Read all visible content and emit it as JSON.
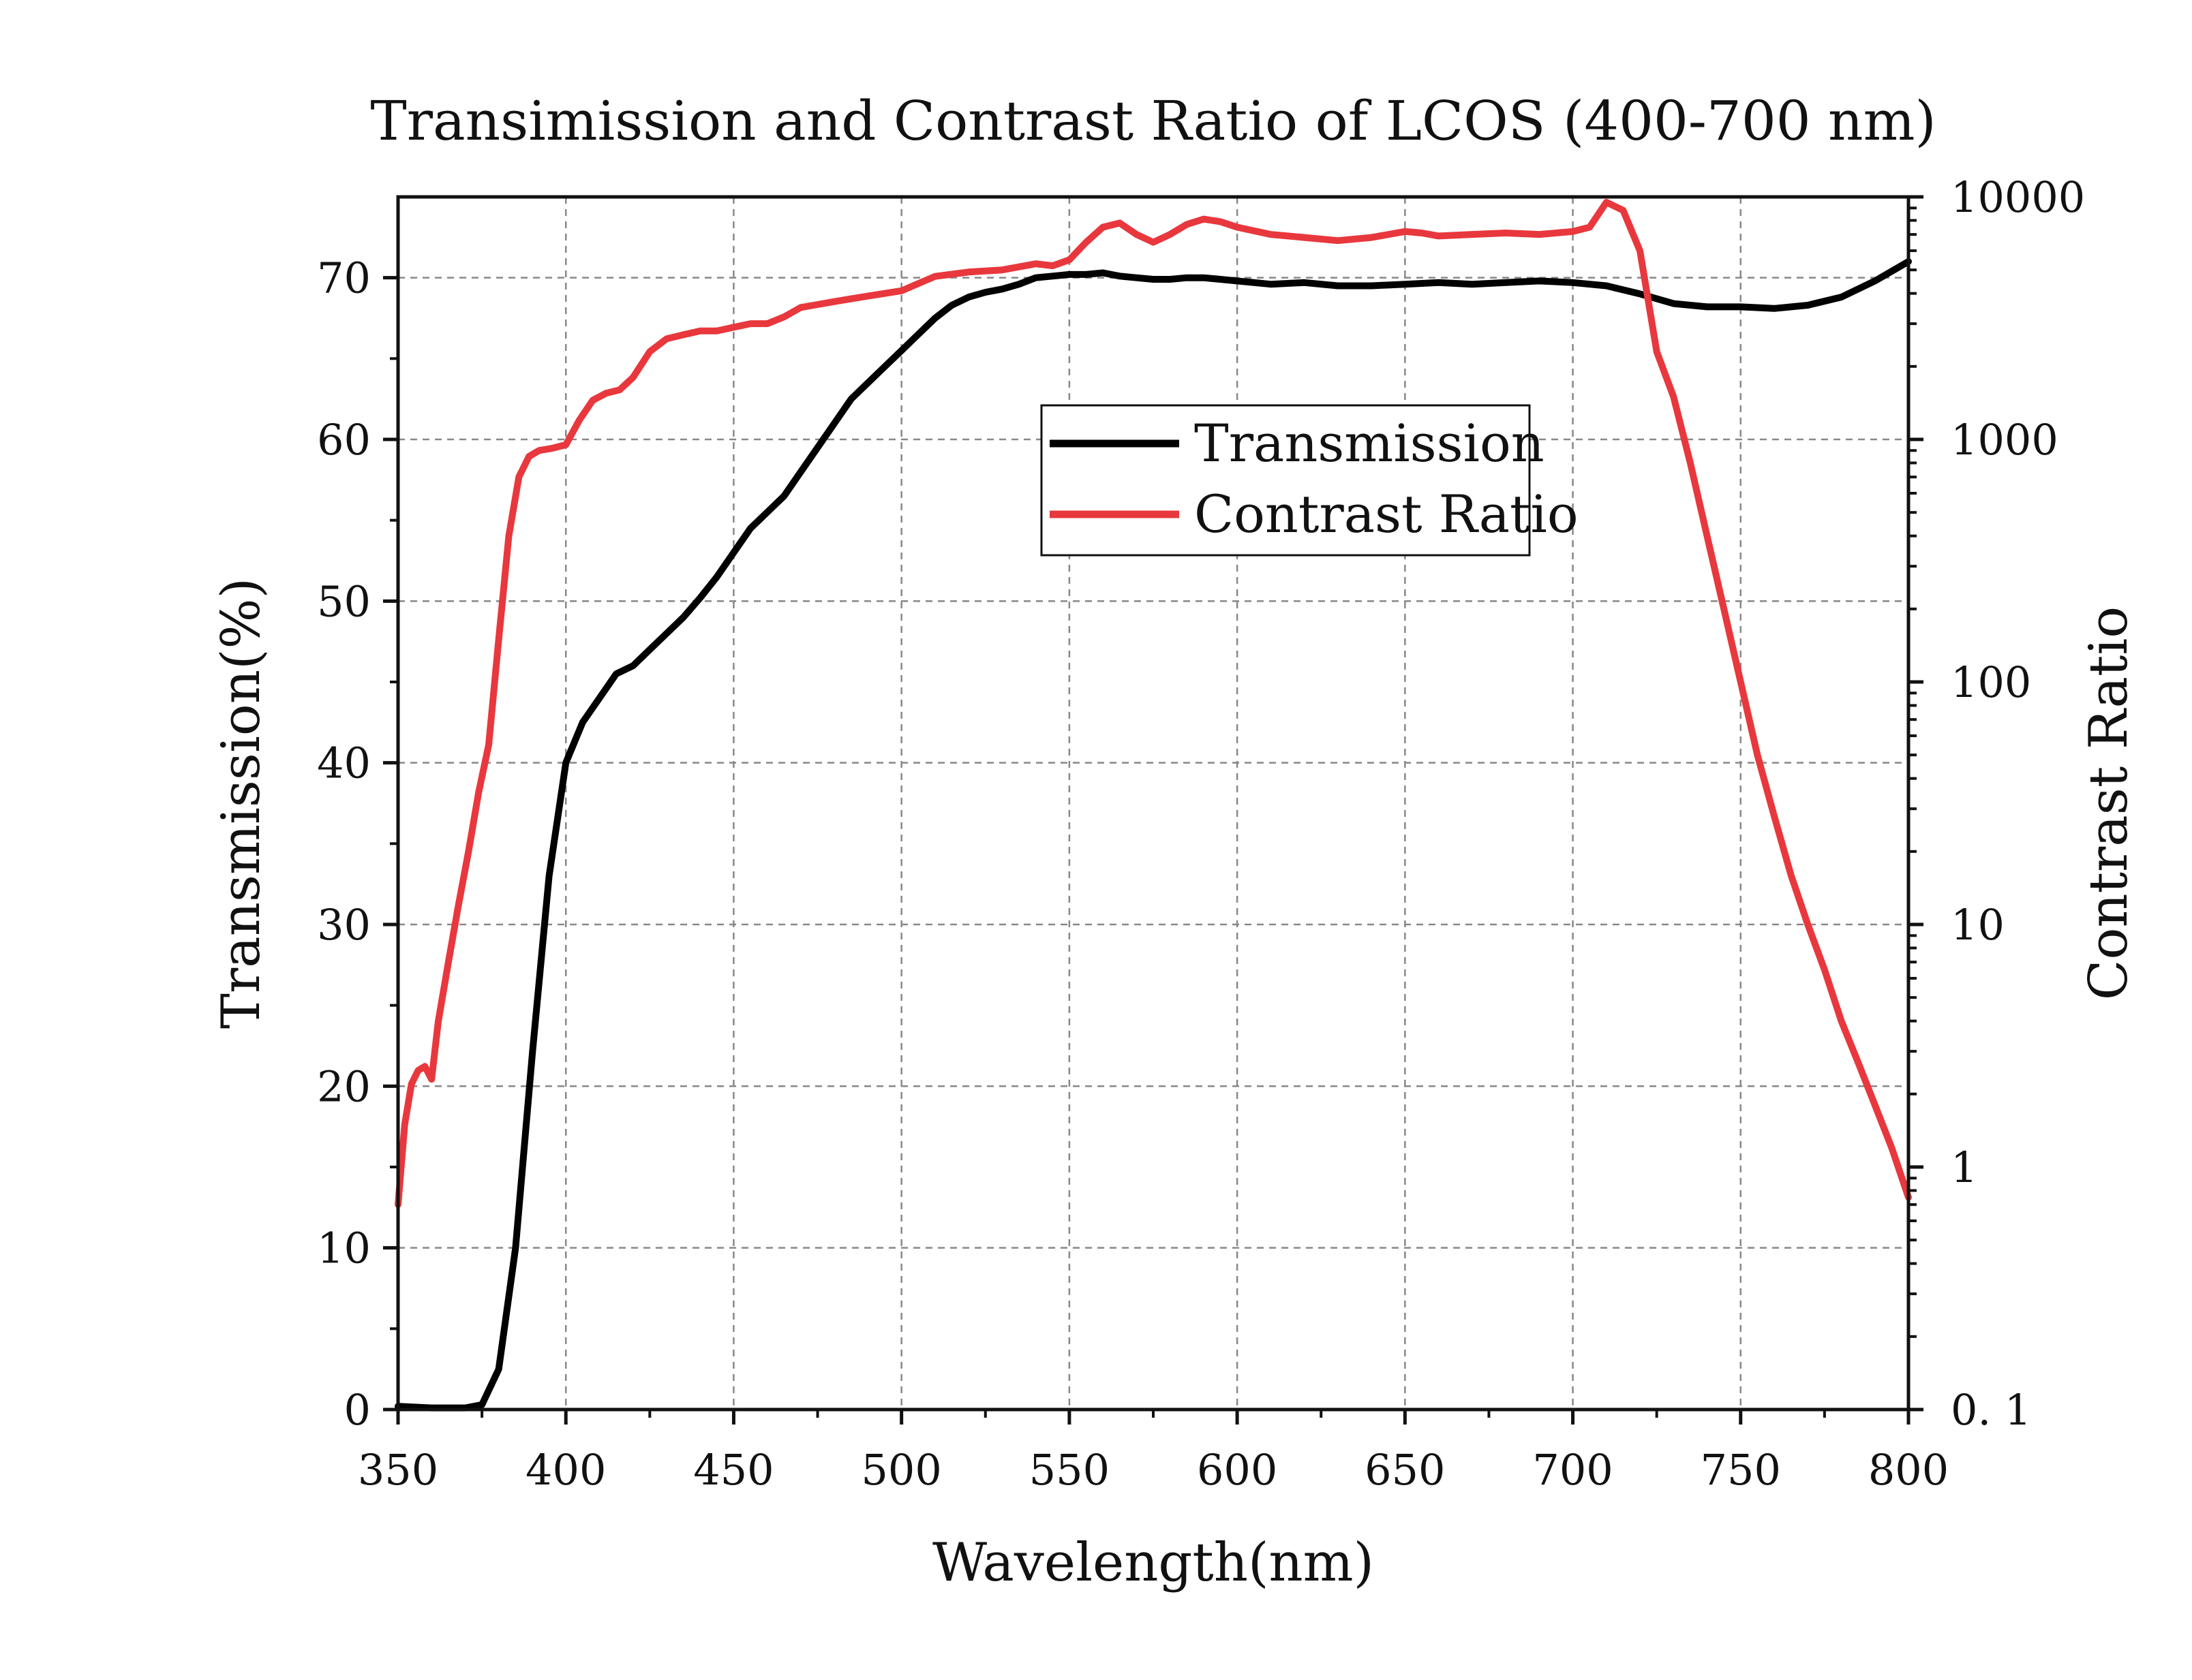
{
  "chart_data": {
    "type": "line",
    "title": "Transimission and Contrast Ratio of LCOS (400-700 nm)",
    "xlabel": "Wavelength(nm)",
    "ylabel": "Transmission(%)",
    "y2label": "Contrast Ratio",
    "xlim": [
      350,
      800
    ],
    "ylim": [
      0,
      75
    ],
    "y2lim": [
      0.1,
      10000
    ],
    "y2scale": "log",
    "grid": true,
    "legend_position": "upper-center",
    "x_ticks": [
      "350",
      "400",
      "450",
      "500",
      "550",
      "600",
      "650",
      "700",
      "750",
      "800"
    ],
    "y_ticks": [
      "0",
      "10",
      "20",
      "30",
      "40",
      "50",
      "60",
      "70"
    ],
    "y2_ticks": [
      "0. 1",
      "1",
      "10",
      "100",
      "1000",
      "10000"
    ],
    "series": [
      {
        "name": "Transmission",
        "axis": "left",
        "color": "#000000",
        "x": [
          350,
          360,
          370,
          375,
          380,
          385,
          390,
          395,
          400,
          405,
          410,
          415,
          420,
          425,
          430,
          435,
          440,
          445,
          450,
          455,
          460,
          465,
          470,
          475,
          480,
          485,
          490,
          495,
          500,
          505,
          510,
          515,
          520,
          525,
          530,
          535,
          540,
          545,
          550,
          555,
          560,
          565,
          570,
          575,
          580,
          585,
          590,
          595,
          600,
          610,
          620,
          630,
          640,
          650,
          660,
          670,
          680,
          690,
          700,
          710,
          720,
          730,
          740,
          750,
          760,
          770,
          780,
          790,
          800
        ],
        "y": [
          0.2,
          0.1,
          0.1,
          0.3,
          2.5,
          10,
          22,
          33,
          40,
          42.5,
          44,
          45.5,
          46,
          47,
          48,
          49,
          50.2,
          51.5,
          53,
          54.5,
          55.5,
          56.5,
          58,
          59.5,
          61,
          62.5,
          63.5,
          64.5,
          65.5,
          66.5,
          67.5,
          68.3,
          68.8,
          69.1,
          69.3,
          69.6,
          70,
          70.1,
          70.2,
          70.2,
          70.3,
          70.1,
          70,
          69.9,
          69.9,
          70,
          70,
          69.9,
          69.8,
          69.6,
          69.7,
          69.5,
          69.5,
          69.6,
          69.7,
          69.6,
          69.7,
          69.8,
          69.7,
          69.5,
          69,
          68.4,
          68.2,
          68.2,
          68.1,
          68.3,
          68.8,
          69.8,
          71
        ]
      },
      {
        "name": "Contrast Ratio",
        "axis": "right",
        "color": "#e8383d",
        "x": [
          350,
          352,
          354,
          356,
          358,
          360,
          362,
          365,
          368,
          371,
          374,
          377,
          380,
          383,
          386,
          389,
          392,
          396,
          400,
          404,
          408,
          412,
          416,
          420,
          425,
          430,
          435,
          440,
          445,
          450,
          455,
          460,
          465,
          470,
          475,
          480,
          485,
          490,
          495,
          500,
          510,
          520,
          530,
          540,
          545,
          550,
          555,
          560,
          565,
          570,
          575,
          580,
          585,
          590,
          595,
          600,
          610,
          620,
          630,
          640,
          650,
          655,
          660,
          670,
          680,
          690,
          700,
          705,
          710,
          715,
          720,
          725,
          730,
          735,
          740,
          745,
          750,
          755,
          760,
          765,
          770,
          775,
          780,
          785,
          790,
          795,
          800
        ],
        "y": [
          0.7,
          1.5,
          2.2,
          2.5,
          2.6,
          2.3,
          4,
          7,
          12,
          20,
          35,
          55,
          150,
          400,
          700,
          850,
          900,
          920,
          950,
          1200,
          1450,
          1550,
          1600,
          1800,
          2300,
          2600,
          2700,
          2800,
          2800,
          2900,
          3000,
          3000,
          3200,
          3500,
          3600,
          3700,
          3800,
          3900,
          4000,
          4100,
          4700,
          4900,
          5000,
          5300,
          5200,
          5500,
          6500,
          7500,
          7800,
          7000,
          6500,
          7000,
          7700,
          8100,
          7900,
          7500,
          7000,
          6800,
          6600,
          6800,
          7200,
          7100,
          6900,
          7000,
          7100,
          7000,
          7200,
          7500,
          9500,
          8800,
          6000,
          2300,
          1500,
          800,
          400,
          200,
          100,
          50,
          28,
          16,
          10,
          6.5,
          4,
          2.7,
          1.8,
          1.2,
          0.75
        ]
      }
    ]
  }
}
